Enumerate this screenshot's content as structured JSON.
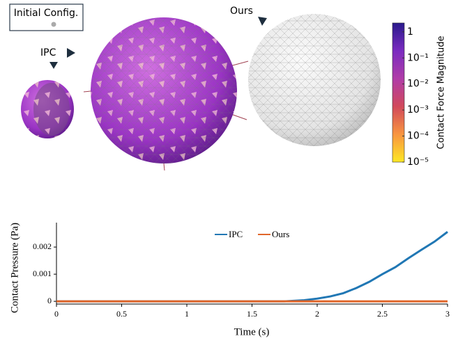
{
  "labels": {
    "initial_config": "Initial Config.",
    "ipc": "IPC",
    "ours": "Ours"
  },
  "colorbar": {
    "label": "Contact Force Magnitude",
    "log": true,
    "lim": [
      1e-05,
      2.2
    ],
    "ticks": [
      1,
      {
        "value": 0.1,
        "label": "10⁻¹"
      },
      {
        "value": 0.01,
        "label": "10⁻²"
      },
      {
        "value": 0.001,
        "label": "10⁻³"
      },
      {
        "value": 0.0001,
        "label": "10⁻⁴"
      },
      {
        "value": 1e-05,
        "label": "10⁻⁵"
      }
    ],
    "colors": [
      "#fde725",
      "#f89540",
      "#d1495b",
      "#b03ca8",
      "#7a2bc0",
      "#2a1a8c"
    ]
  },
  "chart_data": {
    "type": "line",
    "x_label": "Time (s)",
    "y_label": "Contact Pressure (Pa)",
    "xlim": [
      0,
      3
    ],
    "xticks": [
      0,
      0.5,
      1,
      1.5,
      2,
      2.5,
      3
    ],
    "ylim": [
      -0.0001,
      0.0029
    ],
    "yticks": [
      0,
      0.001,
      0.002
    ],
    "x": [
      0,
      0.5,
      1,
      1.5,
      1.75,
      1.9,
      2,
      2.1,
      2.2,
      2.3,
      2.4,
      2.5,
      2.6,
      2.7,
      2.8,
      2.9,
      3
    ],
    "series": [
      {
        "name": "IPC",
        "color": "#2077b4",
        "values": [
          0,
          0,
          0,
          0,
          0,
          4e-05,
          0.0001,
          0.00018,
          0.0003,
          0.00049,
          0.00072,
          0.001,
          0.00126,
          0.00159,
          0.0019,
          0.0022,
          0.00256
        ]
      },
      {
        "name": "Ours",
        "color": "#e0662a",
        "values": [
          0,
          0,
          0,
          0,
          0,
          0,
          0,
          0,
          0,
          0,
          0,
          0,
          0,
          0,
          0,
          0,
          0
        ]
      }
    ]
  }
}
